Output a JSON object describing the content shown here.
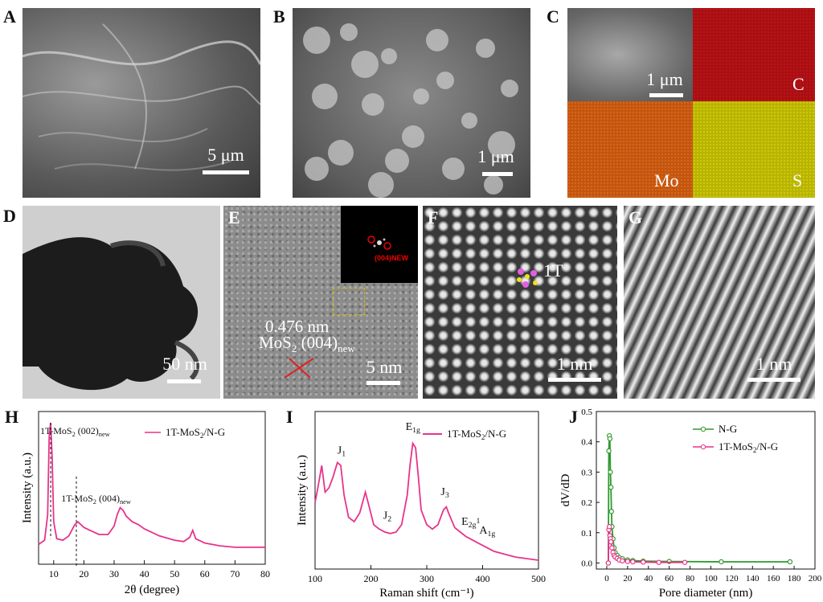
{
  "panels": {
    "A": {
      "label": "A",
      "scale": "5 μm"
    },
    "B": {
      "label": "B",
      "scale": "1 μm"
    },
    "C": {
      "label": "C",
      "scale": "1 μm",
      "maps": [
        "C",
        "Mo",
        "S"
      ]
    },
    "D": {
      "label": "D",
      "scale": "50 nm"
    },
    "E": {
      "label": "E",
      "scale": "5 nm",
      "dspacing": "0.476 nm",
      "plane": "MoS",
      "plane_sub": "2",
      "plane_hkl": " (004)",
      "plane_new": "new",
      "fft_label": "(004)NEW"
    },
    "F": {
      "label": "F",
      "scale": "1 nm",
      "phase": "1T"
    },
    "G": {
      "label": "G",
      "scale": "1 nm"
    },
    "H": {
      "label": "H"
    },
    "I": {
      "label": "I"
    },
    "J": {
      "label": "J"
    }
  },
  "colors": {
    "green": "#2e9a2e",
    "pink": "#e8338a",
    "red_map": "#a80f12",
    "orange_map": "#c45510",
    "yellow_map": "#b8b400"
  },
  "chart_data": [
    {
      "type": "line",
      "panel": "H",
      "xlabel": "2θ (degree)",
      "ylabel": "Intensity (a.u.)",
      "xlim": [
        5,
        80
      ],
      "xticks": [
        10,
        20,
        30,
        40,
        50,
        60,
        70,
        80
      ],
      "legend": "1T-MoS2/N-G",
      "annotations": [
        "1T-MoS2 (002)new",
        "1T-MoS2 (004)new"
      ],
      "series": [
        {
          "name": "1T-MoS2/N-G",
          "x": [
            5,
            7,
            8,
            8.5,
            9,
            9.5,
            10,
            11,
            13,
            15,
            17,
            18,
            20,
            22,
            25,
            28,
            30,
            31,
            32,
            33,
            34,
            36,
            38,
            40,
            45,
            50,
            53,
            55,
            56,
            57,
            60,
            65,
            70,
            75,
            80
          ],
          "y": [
            0.14,
            0.17,
            0.35,
            0.9,
            1.0,
            0.75,
            0.3,
            0.18,
            0.17,
            0.2,
            0.28,
            0.3,
            0.26,
            0.24,
            0.21,
            0.21,
            0.27,
            0.35,
            0.4,
            0.38,
            0.34,
            0.3,
            0.28,
            0.25,
            0.2,
            0.17,
            0.16,
            0.19,
            0.24,
            0.18,
            0.15,
            0.13,
            0.12,
            0.12,
            0.12
          ]
        }
      ]
    },
    {
      "type": "line",
      "panel": "I",
      "xlabel": "Raman shift (cm⁻¹)",
      "ylabel": "Intensity (a.u.)",
      "xlim": [
        100,
        500
      ],
      "xticks": [
        100,
        200,
        300,
        400,
        500
      ],
      "legend": "1T-MoS2/N-G",
      "peak_labels": [
        "J1",
        "J2",
        "E1g",
        "J3",
        "E2g1",
        "A1g"
      ],
      "series": [
        {
          "name": "1T-MoS2/N-G",
          "x": [
            100,
            105,
            112,
            118,
            125,
            132,
            140,
            146,
            152,
            160,
            170,
            180,
            190,
            195,
            205,
            215,
            225,
            235,
            245,
            255,
            265,
            270,
            275,
            280,
            285,
            290,
            300,
            310,
            320,
            330,
            335,
            340,
            350,
            360,
            370,
            380,
            390,
            400,
            410,
            420,
            440,
            460,
            480,
            500
          ],
          "y": [
            0.45,
            0.55,
            0.7,
            0.52,
            0.55,
            0.62,
            0.72,
            0.7,
            0.5,
            0.35,
            0.32,
            0.38,
            0.52,
            0.45,
            0.3,
            0.27,
            0.25,
            0.24,
            0.25,
            0.3,
            0.5,
            0.7,
            0.85,
            0.82,
            0.62,
            0.4,
            0.3,
            0.27,
            0.3,
            0.4,
            0.42,
            0.37,
            0.28,
            0.25,
            0.22,
            0.2,
            0.18,
            0.16,
            0.14,
            0.12,
            0.1,
            0.08,
            0.07,
            0.06
          ]
        }
      ]
    },
    {
      "type": "line",
      "panel": "J",
      "xlabel": "Pore diameter (nm)",
      "ylabel": "dV/dD",
      "xlim": [
        -10,
        200
      ],
      "ylim": [
        -0.02,
        0.5
      ],
      "xticks": [
        0,
        20,
        40,
        60,
        80,
        100,
        120,
        140,
        160,
        180,
        200
      ],
      "yticks": [
        0.0,
        0.1,
        0.2,
        0.3,
        0.4,
        0.5
      ],
      "legend_position": "top-right",
      "series": [
        {
          "name": "N-G",
          "x": [
            1.5,
            2,
            2.5,
            3,
            3.5,
            4,
            4.5,
            5,
            6,
            7,
            8,
            10,
            12,
            15,
            20,
            25,
            35,
            60,
            110,
            176
          ],
          "y": [
            0.0,
            0.37,
            0.42,
            0.41,
            0.3,
            0.25,
            0.17,
            0.12,
            0.08,
            0.05,
            0.035,
            0.025,
            0.018,
            0.014,
            0.01,
            0.008,
            0.006,
            0.005,
            0.004,
            0.004
          ]
        },
        {
          "name": "1T-MoS2/N-G",
          "x": [
            1.5,
            2,
            2.5,
            3,
            3.5,
            4,
            5,
            6,
            7,
            8,
            10,
            12,
            15,
            20,
            25,
            35,
            50,
            75
          ],
          "y": [
            0.0,
            0.11,
            0.12,
            0.09,
            0.08,
            0.07,
            0.05,
            0.035,
            0.025,
            0.02,
            0.015,
            0.01,
            0.007,
            0.005,
            0.004,
            0.003,
            0.002,
            0.002
          ]
        }
      ]
    }
  ]
}
